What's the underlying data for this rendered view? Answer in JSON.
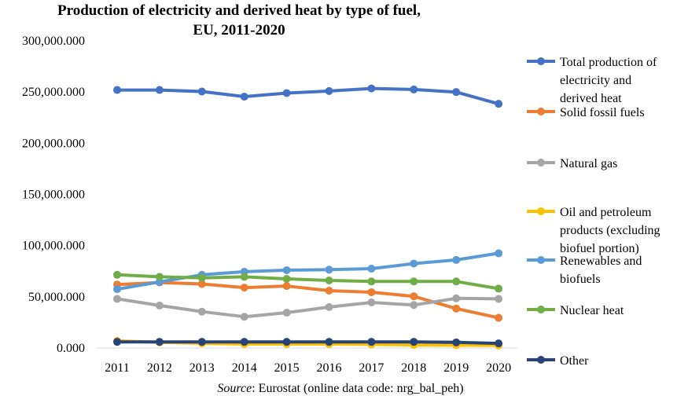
{
  "chart_data": {
    "type": "line",
    "title": [
      "Production of electricity and derived heat by type of fuel,",
      "EU, 2011-2020"
    ],
    "categories": [
      "2011",
      "2012",
      "2013",
      "2014",
      "2015",
      "2016",
      "2017",
      "2018",
      "2019",
      "2020"
    ],
    "ylim": [
      0,
      300000
    ],
    "yticks": [
      "0.000",
      "50,000.000",
      "100,000.000",
      "150,000.000",
      "200,000.000",
      "250,000.000",
      "300,000.000"
    ],
    "grid": false,
    "legend_position": "right",
    "series": [
      {
        "name": "Total production of electricity and derived heat",
        "name_lines": [
          "Total production of",
          "electricity and",
          "derived heat"
        ],
        "color": "#4472C4",
        "values": [
          252000,
          252000,
          250500,
          245500,
          249000,
          251000,
          253500,
          252500,
          250000,
          238500
        ]
      },
      {
        "name": "Solid fossil fuels",
        "name_lines": [
          "Solid fossil fuels"
        ],
        "color": "#ED7D31",
        "values": [
          62000,
          64000,
          62500,
          59000,
          60500,
          56000,
          54500,
          50500,
          38500,
          29500
        ]
      },
      {
        "name": "Natural gas",
        "name_lines": [
          "Natural gas"
        ],
        "color": "#A5A5A5",
        "values": [
          48000,
          41500,
          35500,
          30500,
          34500,
          40000,
          44500,
          42000,
          48500,
          48000
        ]
      },
      {
        "name": "Oil and petroleum products (excluding biofuel portion)",
        "name_lines": [
          "Oil and petroleum",
          "products (excluding",
          "biofuel portion)"
        ],
        "color": "#FFC000",
        "values": [
          7000,
          5500,
          4500,
          3800,
          3800,
          3800,
          3500,
          3000,
          2800,
          2500
        ]
      },
      {
        "name": "Renewables and biofuels",
        "name_lines": [
          "Renewables and",
          "biofuels"
        ],
        "color": "#5B9BD5",
        "values": [
          57500,
          64500,
          71500,
          74500,
          76000,
          76500,
          77500,
          82500,
          86000,
          92500
        ]
      },
      {
        "name": "Nuclear heat",
        "name_lines": [
          "Nuclear heat"
        ],
        "color": "#70AD47",
        "values": [
          71500,
          69500,
          68500,
          69500,
          67500,
          66000,
          65000,
          65000,
          65000,
          58000
        ]
      },
      {
        "name": "Other",
        "name_lines": [
          "Other"
        ],
        "color": "#264478",
        "values": [
          6000,
          6000,
          6000,
          6000,
          6000,
          6000,
          6000,
          6000,
          5500,
          4500
        ]
      }
    ],
    "source_label": "Source",
    "source_text": ": Eurostat (online data code: nrg_bal_peh)"
  }
}
